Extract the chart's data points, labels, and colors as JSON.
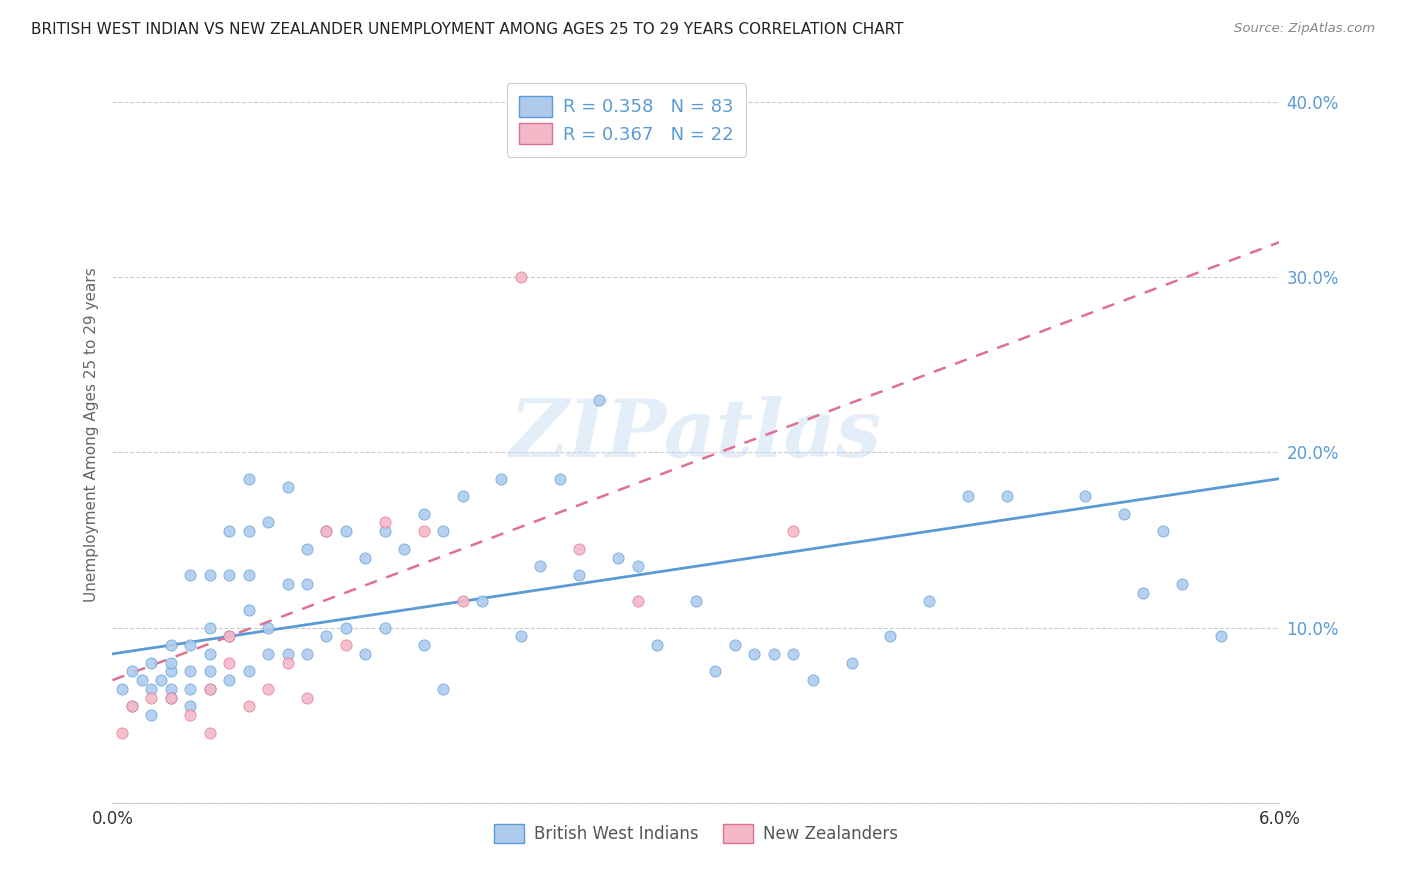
{
  "title": "BRITISH WEST INDIAN VS NEW ZEALANDER UNEMPLOYMENT AMONG AGES 25 TO 29 YEARS CORRELATION CHART",
  "source": "Source: ZipAtlas.com",
  "ylabel": "Unemployment Among Ages 25 to 29 years",
  "x_min": 0.0,
  "x_max": 0.06,
  "y_min": 0.0,
  "y_max": 0.42,
  "x_ticks": [
    0.0,
    0.01,
    0.02,
    0.03,
    0.04,
    0.05,
    0.06
  ],
  "y_ticks": [
    0.0,
    0.1,
    0.2,
    0.3,
    0.4
  ],
  "blue_R": "0.358",
  "blue_N": "83",
  "pink_R": "0.367",
  "pink_N": "22",
  "blue_color": "#aecbee",
  "pink_color": "#f4b8c8",
  "blue_line_color": "#5b9bd5",
  "pink_line_color": "#e07090",
  "tick_color": "#5b9bd5",
  "label_dark": "#333333",
  "label_blue": "#5b9bd5",
  "grid_color": "#cccccc",
  "watermark": "ZIPatlas",
  "legend_label_blue": "British West Indians",
  "legend_label_pink": "New Zealanders",
  "blue_scatter_x": [
    0.0005,
    0.001,
    0.001,
    0.0015,
    0.002,
    0.002,
    0.002,
    0.0025,
    0.003,
    0.003,
    0.003,
    0.003,
    0.003,
    0.004,
    0.004,
    0.004,
    0.004,
    0.004,
    0.005,
    0.005,
    0.005,
    0.005,
    0.005,
    0.006,
    0.006,
    0.006,
    0.006,
    0.007,
    0.007,
    0.007,
    0.007,
    0.007,
    0.008,
    0.008,
    0.008,
    0.009,
    0.009,
    0.009,
    0.01,
    0.01,
    0.01,
    0.011,
    0.011,
    0.012,
    0.012,
    0.013,
    0.013,
    0.014,
    0.014,
    0.015,
    0.016,
    0.016,
    0.017,
    0.017,
    0.018,
    0.019,
    0.02,
    0.021,
    0.022,
    0.023,
    0.024,
    0.025,
    0.026,
    0.027,
    0.028,
    0.03,
    0.031,
    0.032,
    0.033,
    0.034,
    0.035,
    0.036,
    0.038,
    0.04,
    0.042,
    0.044,
    0.046,
    0.05,
    0.052,
    0.053,
    0.054,
    0.055,
    0.057
  ],
  "blue_scatter_y": [
    0.065,
    0.075,
    0.055,
    0.07,
    0.08,
    0.065,
    0.05,
    0.07,
    0.09,
    0.075,
    0.065,
    0.08,
    0.06,
    0.13,
    0.075,
    0.09,
    0.065,
    0.055,
    0.13,
    0.085,
    0.1,
    0.065,
    0.075,
    0.155,
    0.13,
    0.095,
    0.07,
    0.185,
    0.155,
    0.13,
    0.11,
    0.075,
    0.16,
    0.1,
    0.085,
    0.18,
    0.125,
    0.085,
    0.145,
    0.125,
    0.085,
    0.155,
    0.095,
    0.155,
    0.1,
    0.14,
    0.085,
    0.155,
    0.1,
    0.145,
    0.165,
    0.09,
    0.155,
    0.065,
    0.175,
    0.115,
    0.185,
    0.095,
    0.135,
    0.185,
    0.13,
    0.23,
    0.14,
    0.135,
    0.09,
    0.115,
    0.075,
    0.09,
    0.085,
    0.085,
    0.085,
    0.07,
    0.08,
    0.095,
    0.115,
    0.175,
    0.175,
    0.175,
    0.165,
    0.12,
    0.155,
    0.125,
    0.095
  ],
  "pink_scatter_x": [
    0.0005,
    0.001,
    0.002,
    0.003,
    0.004,
    0.005,
    0.005,
    0.006,
    0.006,
    0.007,
    0.008,
    0.009,
    0.01,
    0.011,
    0.012,
    0.014,
    0.016,
    0.018,
    0.021,
    0.024,
    0.027,
    0.035
  ],
  "pink_scatter_y": [
    0.04,
    0.055,
    0.06,
    0.06,
    0.05,
    0.065,
    0.04,
    0.08,
    0.095,
    0.055,
    0.065,
    0.08,
    0.06,
    0.155,
    0.09,
    0.16,
    0.155,
    0.115,
    0.3,
    0.145,
    0.115,
    0.155
  ],
  "blue_trend_x": [
    0.0,
    0.06
  ],
  "blue_trend_y": [
    0.085,
    0.185
  ],
  "pink_trend_x": [
    0.0,
    0.06
  ],
  "pink_trend_y": [
    0.07,
    0.32
  ]
}
